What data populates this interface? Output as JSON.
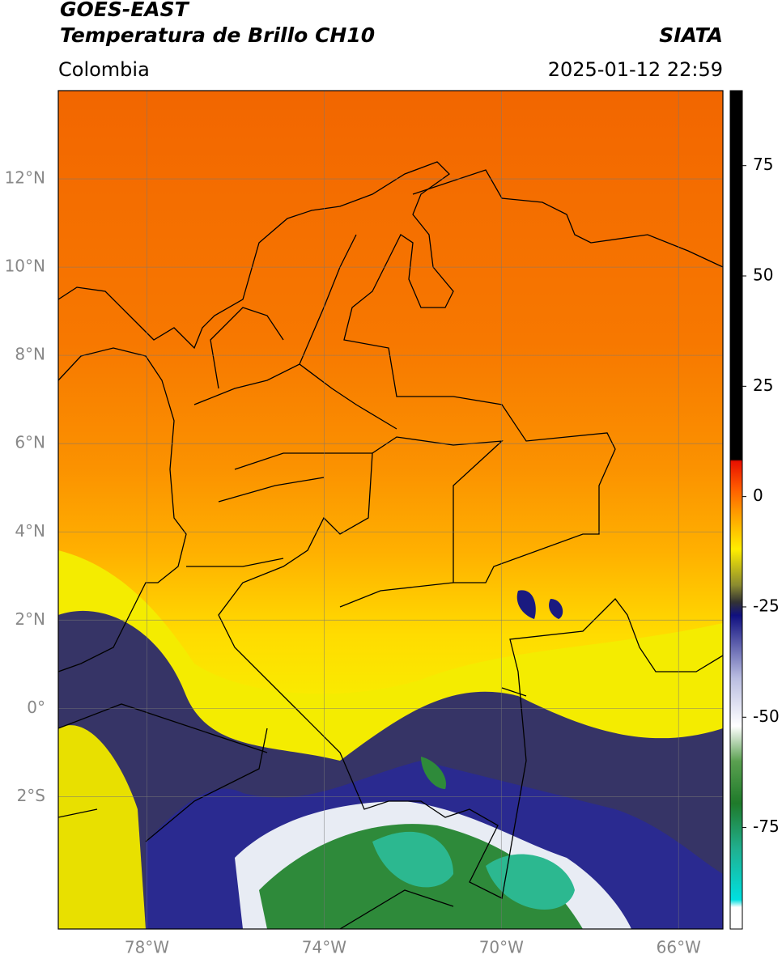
{
  "header": {
    "title": "GOES-EAST",
    "subtitle": "Temperatura de Brillo CH10",
    "source": "SIATA",
    "region": "Colombia",
    "timestamp": "2025-01-12 22:59"
  },
  "map": {
    "xlim": [
      -80,
      -65
    ],
    "ylim": [
      -5,
      14
    ],
    "lat_ticks": [
      {
        "value": 12,
        "label": "12°N"
      },
      {
        "value": 10,
        "label": "10°N"
      },
      {
        "value": 8,
        "label": "8°N"
      },
      {
        "value": 6,
        "label": "6°N"
      },
      {
        "value": 4,
        "label": "4°N"
      },
      {
        "value": 2,
        "label": "2°N"
      },
      {
        "value": 0,
        "label": "0°"
      },
      {
        "value": -2,
        "label": "2°S"
      }
    ],
    "lon_ticks": [
      {
        "value": -78,
        "label": "78°W"
      },
      {
        "value": -74,
        "label": "74°W"
      },
      {
        "value": -70,
        "label": "70°W"
      },
      {
        "value": -66,
        "label": "66°W"
      }
    ]
  },
  "colorbar": {
    "lim": [
      -98,
      92
    ],
    "ticks": [
      75,
      50,
      25,
      0,
      -25,
      -50,
      -75
    ]
  }
}
